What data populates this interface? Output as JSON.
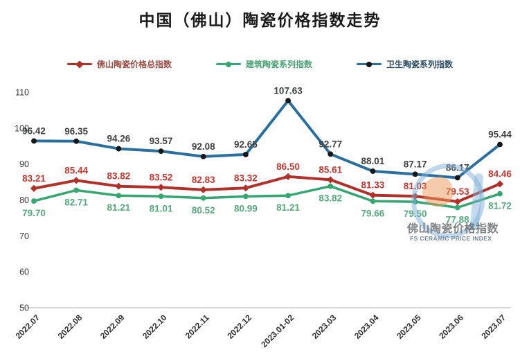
{
  "title": "中国（佛山）陶瓷价格指数走势",
  "watermark": {
    "line1": "佛山陶瓷价格指数",
    "line2": "FS CERAMIC PRICE INDEX"
  },
  "chart_data": {
    "type": "line",
    "title": "中国（佛山）陶瓷价格指数走势",
    "xlabel": "",
    "ylabel": "",
    "ylim": [
      50,
      110
    ],
    "yticks": [
      110,
      100,
      90,
      80,
      70,
      60,
      50
    ],
    "grid": false,
    "legend_position": "top",
    "categories": [
      "2022.07",
      "2022.08",
      "2022.09",
      "2022.10",
      "2022.11",
      "2022.12",
      "2023.01-02",
      "2023.03",
      "2023.04",
      "2023.05",
      "2023.06",
      "2023.07"
    ],
    "series": [
      {
        "name": "佛山陶瓷价格总指数",
        "color": "#b0312a",
        "marker_color": "#b0312a",
        "label_color": "#c23730",
        "marker": "diamond",
        "label_position": "above",
        "values": [
          83.21,
          85.44,
          83.82,
          83.52,
          82.83,
          83.32,
          86.5,
          85.61,
          81.33,
          81.03,
          79.53,
          84.46
        ]
      },
      {
        "name": "建筑陶瓷系列指数",
        "color": "#36a673",
        "marker_color": "#36a673",
        "label_color": "#57a97e",
        "marker": "circle",
        "label_position": "below",
        "values": [
          79.7,
          82.71,
          81.21,
          81.01,
          80.52,
          80.99,
          81.21,
          83.82,
          79.66,
          79.5,
          77.88,
          81.72
        ]
      },
      {
        "name": "卫生陶瓷系列指数",
        "color": "#2a6f9e",
        "marker_color": "#161616",
        "label_color": "#3f4040",
        "marker": "circle",
        "label_position": "above",
        "values": [
          96.42,
          96.35,
          94.26,
          93.57,
          92.08,
          92.65,
          107.63,
          92.77,
          88.01,
          87.17,
          86.17,
          95.44
        ]
      }
    ]
  }
}
